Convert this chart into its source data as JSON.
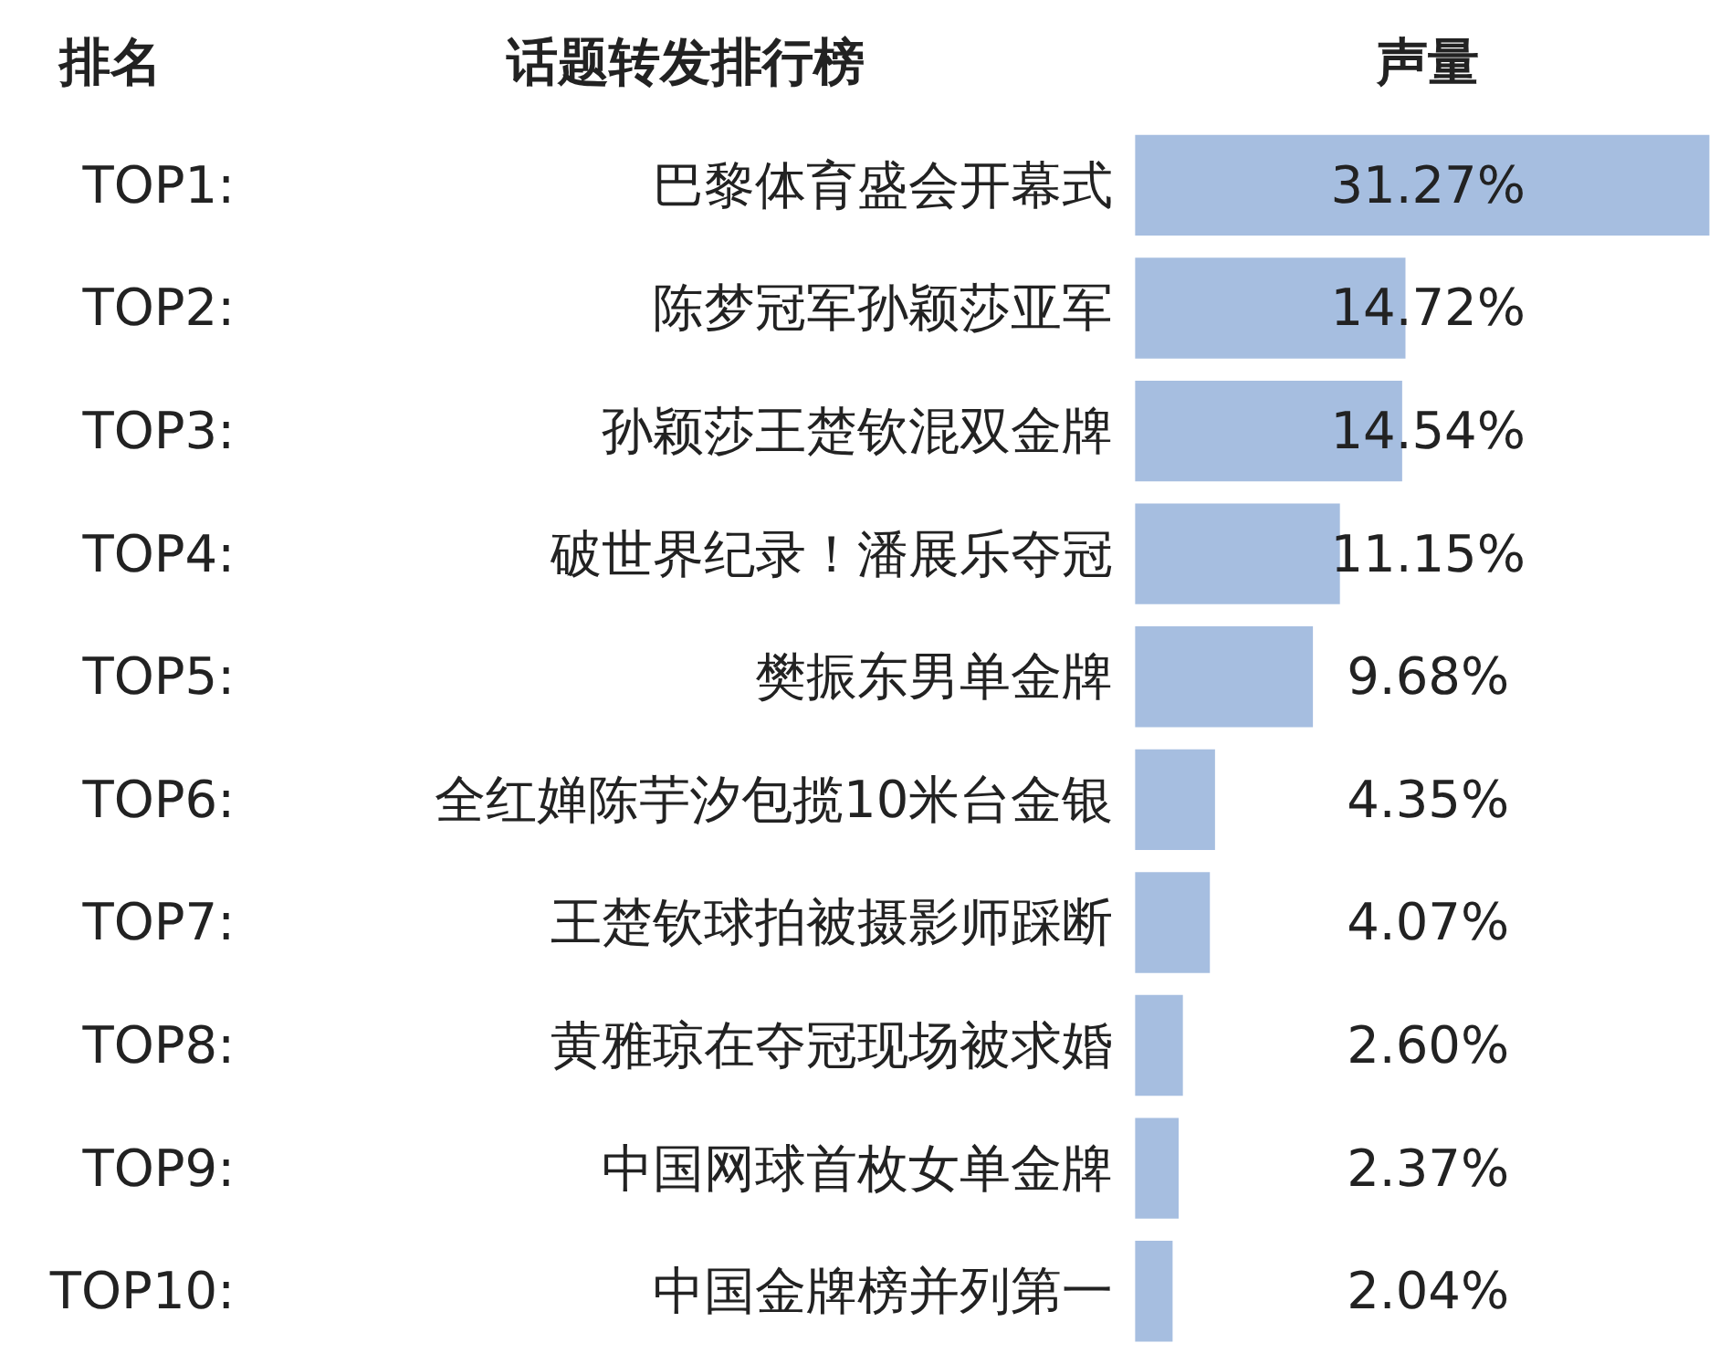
{
  "chart_data": {
    "type": "bar",
    "orientation": "horizontal",
    "color": "#6a93cc",
    "categories": [
      "巴黎体育盛会开幕式",
      "陈梦冠军孙颖莎亚军",
      "孙颖莎王楚钦混双金牌",
      "破世界纪录！潘展乐夺冠",
      "樊振东男单金牌",
      "全红婵陈芋汐包揽10米台金银",
      "王楚钦球拍被摄影师踩断",
      "黄雅琼在夺冠现场被求婚",
      "中国网球首枚女单金牌",
      "中国金牌榜并列第一"
    ],
    "values": [
      31.27,
      14.72,
      14.54,
      11.15,
      9.68,
      4.35,
      4.07,
      2.6,
      2.37,
      2.04
    ],
    "value_labels": [
      "31.27%",
      "14.72%",
      "14.54%",
      "11.15%",
      "9.68%",
      "4.35%",
      "4.07%",
      "2.60%",
      "2.37%",
      "2.04%"
    ],
    "annotations": [
      "排名",
      "话题转发排行榜",
      "声量",
      "TOP1:",
      "TOP2:",
      "TOP3:",
      "TOP4:",
      "TOP5:",
      "TOP6:",
      "TOP7:",
      "TOP8:",
      "TOP9:",
      "TOP10:"
    ]
  }
}
